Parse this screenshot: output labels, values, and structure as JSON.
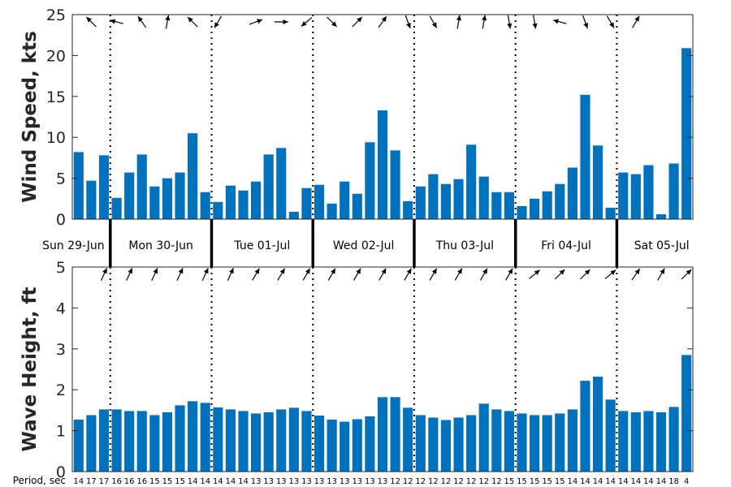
{
  "chart_data": [
    {
      "type": "bar",
      "ylabel": "Wind Speed, kts",
      "ylim": [
        0,
        25
      ],
      "yticks": [
        0,
        5,
        10,
        15,
        20,
        25
      ],
      "bar_color": "#0072BD",
      "values": [
        8.2,
        4.7,
        7.8,
        2.6,
        5.7,
        7.9,
        4.0,
        5.0,
        5.7,
        10.5,
        3.3,
        2.1,
        4.1,
        3.5,
        4.6,
        7.9,
        8.7,
        0.9,
        3.8,
        4.2,
        1.9,
        4.6,
        3.1,
        9.4,
        13.3,
        8.4,
        2.2,
        4.0,
        5.5,
        4.3,
        4.9,
        9.1,
        5.2,
        3.3,
        3.3,
        1.6,
        2.5,
        3.4,
        4.3,
        6.3,
        15.2,
        9.0,
        1.4,
        5.7,
        5.5,
        6.6,
        0.6,
        6.8,
        20.9
      ],
      "direction_arrows": [
        {
          "i": 1,
          "angle": 135
        },
        {
          "i": 3,
          "angle": 165
        },
        {
          "i": 5,
          "angle": 125
        },
        {
          "i": 7,
          "angle": 80
        },
        {
          "i": 9,
          "angle": 135
        },
        {
          "i": 11,
          "angle": -120
        },
        {
          "i": 14,
          "angle": 20
        },
        {
          "i": 16,
          "angle": 0
        },
        {
          "i": 18,
          "angle": -140
        },
        {
          "i": 20,
          "angle": -45
        },
        {
          "i": 22,
          "angle": 45
        },
        {
          "i": 24,
          "angle": 55
        },
        {
          "i": 26,
          "angle": -70
        },
        {
          "i": 28,
          "angle": -60
        },
        {
          "i": 30,
          "angle": 80
        },
        {
          "i": 32,
          "angle": 80
        },
        {
          "i": 34,
          "angle": -80
        },
        {
          "i": 36,
          "angle": -80
        },
        {
          "i": 38,
          "angle": 165
        },
        {
          "i": 40,
          "angle": -70
        },
        {
          "i": 42,
          "angle": -60
        },
        {
          "i": 44,
          "angle": 60
        }
      ]
    },
    {
      "type": "bar",
      "ylabel": "Wave Height, ft",
      "ylim": [
        0,
        5
      ],
      "yticks": [
        0,
        1,
        2,
        3,
        4,
        5
      ],
      "bar_color": "#0072BD",
      "values": [
        1.27,
        1.38,
        1.52,
        1.52,
        1.48,
        1.48,
        1.38,
        1.45,
        1.62,
        1.72,
        1.68,
        1.57,
        1.52,
        1.48,
        1.42,
        1.45,
        1.52,
        1.56,
        1.48,
        1.37,
        1.27,
        1.22,
        1.28,
        1.35,
        1.82,
        1.82,
        1.56,
        1.38,
        1.32,
        1.26,
        1.32,
        1.38,
        1.66,
        1.52,
        1.48,
        1.42,
        1.38,
        1.38,
        1.42,
        1.52,
        2.22,
        2.32,
        1.76,
        1.48,
        1.45,
        1.48,
        1.45,
        1.58,
        2.85
      ],
      "direction_arrows": [
        {
          "i": 2,
          "angle": 65
        },
        {
          "i": 4,
          "angle": 65
        },
        {
          "i": 6,
          "angle": 65
        },
        {
          "i": 8,
          "angle": 65
        },
        {
          "i": 10,
          "angle": 65
        },
        {
          "i": 12,
          "angle": 65
        },
        {
          "i": 14,
          "angle": 60
        },
        {
          "i": 16,
          "angle": 60
        },
        {
          "i": 18,
          "angle": 60
        },
        {
          "i": 20,
          "angle": 60
        },
        {
          "i": 22,
          "angle": 60
        },
        {
          "i": 24,
          "angle": 60
        },
        {
          "i": 26,
          "angle": 60
        },
        {
          "i": 28,
          "angle": 60
        },
        {
          "i": 30,
          "angle": 60
        },
        {
          "i": 32,
          "angle": 60
        },
        {
          "i": 34,
          "angle": 60
        },
        {
          "i": 36,
          "angle": 40
        },
        {
          "i": 38,
          "angle": 45
        },
        {
          "i": 40,
          "angle": 45
        },
        {
          "i": 42,
          "angle": 40
        },
        {
          "i": 44,
          "angle": 55
        },
        {
          "i": 46,
          "angle": 60
        },
        {
          "i": 48,
          "angle": 45
        }
      ]
    }
  ],
  "days": [
    "Sun 29-Jun",
    "Mon 30-Jun",
    "Tue 01-Jul",
    "Wed 02-Jul",
    "Thu 03-Jul",
    "Fri 04-Jul",
    "Sat 05-Jul"
  ],
  "day_start_index": [
    0,
    3,
    11,
    19,
    27,
    35,
    43
  ],
  "period_label": "Period, sec",
  "periods": [
    "14",
    "17",
    "17",
    "16",
    "16",
    "16",
    "15",
    "15",
    "15",
    "14",
    "14",
    "14",
    "14",
    "14",
    "13",
    "13",
    "13",
    "13",
    "13",
    "13",
    "13",
    "13",
    "13",
    "13",
    "13",
    "12",
    "12",
    "12",
    "12",
    "12",
    "12",
    "12",
    "12",
    "12",
    "15",
    "15",
    "15",
    "15",
    "15",
    "14",
    "14",
    "14",
    "14",
    "14",
    "14",
    "14",
    "14",
    "18",
    "4"
  ]
}
